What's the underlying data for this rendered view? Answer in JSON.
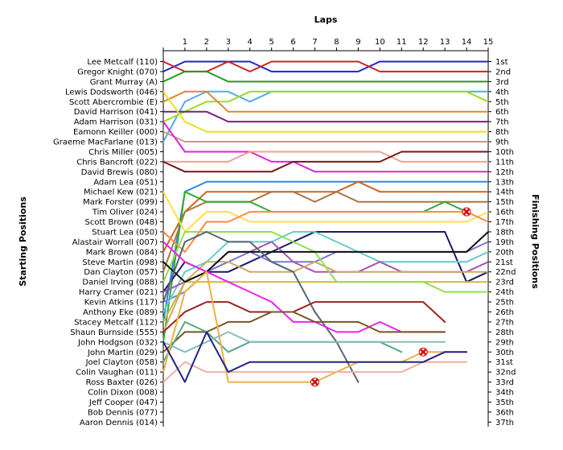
{
  "chart_data": {
    "type": "line",
    "title": "",
    "xlabel": "Laps",
    "ylabel_left": "Starting Positions",
    "ylabel_right": "Finishing Positions",
    "x": [
      0,
      1,
      2,
      3,
      4,
      5,
      6,
      7,
      8,
      9,
      10,
      11,
      12,
      13,
      14,
      15
    ],
    "x_tick_labels": [
      "1",
      "2",
      "3",
      "4",
      "5",
      "6",
      "7",
      "8",
      "9",
      "10",
      "11",
      "12",
      "13",
      "14",
      "15"
    ],
    "y_axis_inverted": true,
    "ylim": [
      1,
      37
    ],
    "grid": false,
    "starting_labels": [
      "Lee Metcalf (110)",
      "Gregor Knight (070)",
      "Grant Murray (A)",
      "Lewis Dodsworth (046)",
      "Scott Abercrombie (E)",
      "David Harrison (041)",
      "Adam Harrison (031)",
      "Eamonn Keiller (000)",
      "Graeme MacFarlane (013)",
      "Chris Miller (005)",
      "Chris Bancroft (022)",
      "David Brewis (080)",
      "Adam Lea (051)",
      "Michael Kew (021)",
      "Mark Forster (099)",
      "Tim Oliver (024)",
      "Scott Brown (048)",
      "Stuart Lea (050)",
      "Alastair Worrall (007)",
      "Mark Brown (084)",
      "Steve Martin (098)",
      "Dan Clayton (057)",
      "Daniel Irving (088)",
      "Harry Cramer (021)",
      "Kevin Atkins (117)",
      "Anthony Eke (089)",
      "Stacey Metcalf (112)",
      "Shaun Burnside (555)",
      "John Hodgson (032)",
      "John Martin (029)",
      "Joel Clayton (058)",
      "Colin Vaughan (011)",
      "Ross Baxter (026)",
      "Colin Dixon (008)",
      "Jeff Cooper (047)",
      "Bob Dennis (077)",
      "Aaron Dennis (014)"
    ],
    "finishing_labels": [
      "1st",
      "2nd",
      "3rd",
      "4th",
      "5th",
      "6th",
      "7th",
      "8th",
      "9th",
      "10th",
      "11th",
      "12th",
      "13th",
      "14th",
      "15th",
      "16th",
      "17th",
      "18th",
      "19th",
      "20th",
      "21st",
      "22nd",
      "23rd",
      "24th",
      "25th",
      "26th",
      "27th",
      "28th",
      "29th",
      "30th",
      "31st",
      "32nd",
      "33rd",
      "34th",
      "35th",
      "36th",
      "37th"
    ],
    "series": [
      {
        "color": "#2222cc",
        "values": [
          2,
          1,
          1,
          1,
          1,
          2,
          2,
          2,
          2,
          2,
          1,
          1,
          1,
          1,
          1,
          1
        ]
      },
      {
        "color": "#cc2222",
        "values": [
          1,
          2,
          2,
          1,
          2,
          1,
          1,
          1,
          1,
          1,
          2,
          2,
          2,
          2,
          2,
          2
        ]
      },
      {
        "color": "#229922",
        "values": [
          3,
          2,
          2,
          3,
          3,
          3,
          3,
          3,
          3,
          3,
          3,
          3,
          3,
          3,
          3,
          3
        ]
      },
      {
        "color": "#55aaee",
        "values": [
          9,
          5,
          4,
          4,
          5,
          4,
          4,
          4,
          4,
          4,
          4,
          4,
          4,
          4,
          4,
          4
        ]
      },
      {
        "color": "#99dd22",
        "values": [
          7,
          6,
          5,
          5,
          4,
          4,
          4,
          4,
          4,
          4,
          4,
          4,
          4,
          4,
          4,
          5
        ]
      },
      {
        "color": "#e08833",
        "values": [
          5,
          4,
          4,
          6,
          6,
          6,
          6,
          6,
          6,
          6,
          6,
          6,
          6,
          6,
          6,
          6
        ]
      },
      {
        "color": "#772277",
        "values": [
          6,
          6,
          6,
          7,
          7,
          7,
          7,
          7,
          7,
          7,
          7,
          7,
          7,
          7,
          7,
          7
        ]
      },
      {
        "color": "#eedd22",
        "values": [
          4,
          7,
          8,
          8,
          8,
          8,
          8,
          8,
          8,
          8,
          8,
          8,
          8,
          8,
          8,
          8
        ]
      },
      {
        "color": "#c8a060",
        "values": [
          8,
          9,
          9,
          9,
          9,
          9,
          9,
          9,
          9,
          9,
          9,
          9,
          9,
          9,
          9,
          9
        ]
      },
      {
        "color": "#dd22dd",
        "values": [
          7,
          10,
          10,
          10,
          10,
          11,
          11,
          12,
          12,
          12,
          12,
          12,
          12,
          12,
          12,
          12
        ]
      },
      {
        "color": "#f0a090",
        "values": [
          11,
          11,
          11,
          11,
          10,
          10,
          10,
          10,
          10,
          10,
          10,
          11,
          11,
          11,
          11,
          11
        ]
      },
      {
        "color": "#7a1515",
        "values": [
          11,
          12,
          12,
          12,
          12,
          12,
          11,
          11,
          11,
          11,
          11,
          10,
          10,
          10,
          10,
          10
        ]
      },
      {
        "color": "#3388dd",
        "values": [
          27,
          14,
          13,
          13,
          13,
          13,
          13,
          13,
          13,
          13,
          13,
          13,
          13,
          13,
          13,
          13
        ]
      },
      {
        "color": "#cc6622",
        "values": [
          20,
          16,
          14,
          14,
          14,
          14,
          14,
          14,
          14,
          13,
          14,
          14,
          14,
          14,
          14,
          14
        ]
      },
      {
        "color": "#aa7744",
        "values": [
          22,
          16,
          15,
          15,
          15,
          14,
          14,
          15,
          14,
          15,
          15,
          15,
          15,
          15,
          15,
          15
        ]
      },
      {
        "color": "#33aa33",
        "values": [
          29,
          14,
          15,
          15,
          15,
          16,
          16,
          16,
          16,
          16,
          16,
          16,
          16,
          15,
          16,
          null
        ]
      },
      {
        "color": "#ffe040",
        "values": [
          14,
          18,
          16,
          16,
          17,
          17,
          17,
          17,
          17,
          17,
          17,
          17,
          17,
          17,
          17,
          16
        ]
      },
      {
        "color": "#ff8844",
        "values": [
          18,
          20,
          17,
          17,
          16,
          16,
          16,
          16,
          16,
          16,
          16,
          16,
          16,
          16,
          16,
          17
        ]
      },
      {
        "color": "#1a1a66",
        "values": [
          24,
          21,
          22,
          22,
          21,
          20,
          19,
          18,
          18,
          18,
          18,
          18,
          18,
          18,
          23,
          22
        ]
      },
      {
        "color": "#7777dd",
        "values": [
          25,
          24,
          22,
          21,
          20,
          21,
          21,
          21,
          20,
          20,
          20,
          20,
          20,
          20,
          20,
          19
        ]
      },
      {
        "color": "#66cccc",
        "values": [
          26,
          22,
          21,
          19,
          19,
          19,
          18,
          18,
          19,
          20,
          21,
          21,
          21,
          21,
          21,
          20
        ]
      },
      {
        "color": "#aa55aa",
        "values": [
          24,
          23,
          22,
          20,
          20,
          19,
          21,
          22,
          22,
          22,
          21,
          22,
          22,
          22,
          22,
          21
        ]
      },
      {
        "color": "#ccaa66",
        "values": [
          28,
          23,
          21,
          21,
          22,
          22,
          22,
          21,
          22,
          22,
          22,
          22,
          22,
          22,
          22,
          22
        ]
      },
      {
        "color": "#c8b840",
        "values": [
          27,
          23,
          23,
          23,
          23,
          23,
          23,
          23,
          23,
          23,
          23,
          23,
          23,
          23,
          23,
          23
        ]
      },
      {
        "color": "#8fe050",
        "values": [
          23,
          18,
          18,
          18,
          18,
          18,
          19,
          20,
          23,
          23,
          23,
          23,
          23,
          24,
          24,
          24
        ]
      },
      {
        "color": "#111111",
        "values": [
          21,
          23,
          22,
          20,
          20,
          20,
          20,
          20,
          20,
          20,
          20,
          20,
          20,
          20,
          20,
          18
        ]
      },
      {
        "color": "#556677",
        "values": [
          25,
          19,
          18,
          19,
          19,
          21,
          22,
          26,
          29,
          33,
          null,
          null,
          null,
          null,
          null,
          null
        ]
      },
      {
        "color": "#992222",
        "values": [
          28,
          26,
          25,
          25,
          26,
          26,
          26,
          25,
          25,
          25,
          25,
          25,
          25,
          27,
          null,
          null
        ]
      },
      {
        "color": "#ee22ee",
        "values": [
          19,
          21,
          22,
          23,
          24,
          25,
          27,
          27,
          28,
          28,
          27,
          28,
          28,
          28,
          null,
          null
        ]
      },
      {
        "color": "#775522",
        "values": [
          30,
          28,
          28,
          27,
          27,
          26,
          26,
          27,
          27,
          27,
          28,
          28,
          28,
          28,
          null,
          null
        ]
      },
      {
        "color": "#55aa88",
        "values": [
          31,
          27,
          28,
          30,
          29,
          29,
          29,
          29,
          29,
          29,
          29,
          30,
          null,
          null,
          null,
          null
        ]
      },
      {
        "color": "#88bbbb",
        "values": [
          29,
          30,
          29,
          28,
          29,
          29,
          29,
          29,
          29,
          29,
          29,
          29,
          29,
          29,
          null,
          null
        ]
      },
      {
        "color": "#eeb040",
        "values": [
          32,
          24,
          22,
          33,
          33,
          33,
          33,
          33,
          32,
          31,
          31,
          31,
          30,
          30,
          30,
          null
        ]
      },
      {
        "color": "#f0b0a0",
        "values": [
          33,
          31,
          32,
          32,
          32,
          32,
          32,
          32,
          32,
          32,
          32,
          32,
          31,
          31,
          31,
          null
        ]
      },
      {
        "color": "#222288",
        "values": [
          29,
          33,
          28,
          32,
          31,
          31,
          31,
          31,
          31,
          31,
          31,
          31,
          31,
          30,
          30,
          null
        ]
      }
    ],
    "retirements": [
      {
        "lap": 7,
        "position": 33
      },
      {
        "lap": 12,
        "position": 30
      },
      {
        "lap": 14,
        "position": 16
      }
    ]
  }
}
